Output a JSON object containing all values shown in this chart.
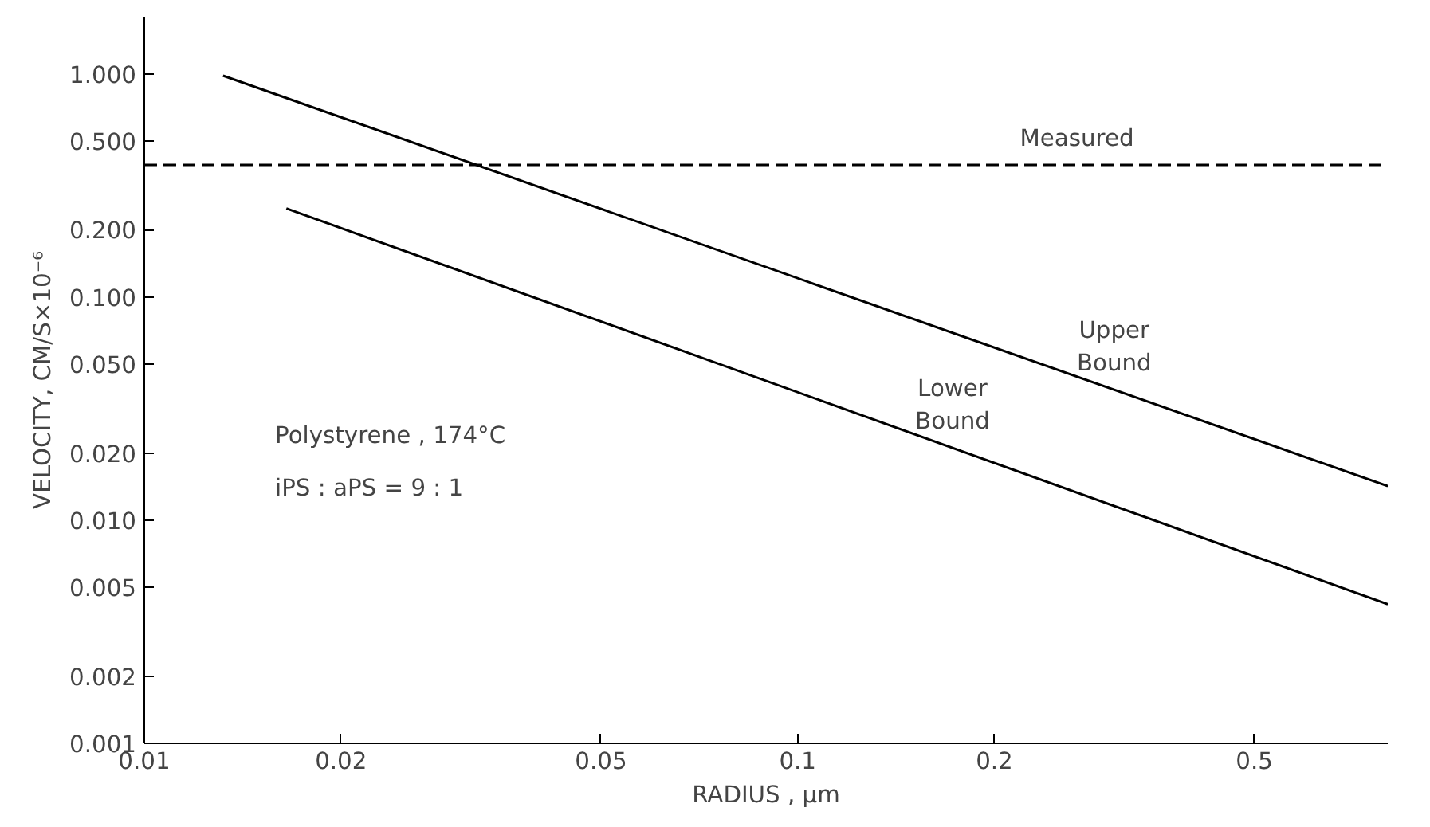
{
  "chart_data": {
    "type": "line",
    "xlabel": "RADIUS , μm",
    "ylabel": "VELOCITY, CM/S×10⁻⁶",
    "log": "xy",
    "grid": false,
    "marker": "none",
    "xlim": [
      0.01,
      0.8
    ],
    "ylim": [
      0.001,
      1.8
    ],
    "xticks": [
      0.01,
      0.02,
      0.05,
      0.1,
      0.2,
      0.5
    ],
    "yticks": [
      {
        "value": 0.001,
        "label": "0.001"
      },
      {
        "value": 0.002,
        "label": "0.002"
      },
      {
        "value": 0.005,
        "label": "0.005"
      },
      {
        "value": 0.01,
        "label": "0.010"
      },
      {
        "value": 0.02,
        "label": "0.020"
      },
      {
        "value": 0.05,
        "label": "0.050"
      },
      {
        "value": 0.1,
        "label": "0.100"
      },
      {
        "value": 0.2,
        "label": "0.200"
      },
      {
        "value": 0.5,
        "label": "0.500"
      },
      {
        "value": 1,
        "label": "1.000"
      }
    ],
    "series": [
      {
        "name": "Measured",
        "color": "#000000",
        "line_style": "dashed",
        "x": [
          0.01,
          0.8
        ],
        "values": [
          0.39,
          0.39
        ]
      },
      {
        "name": "Upper Bound",
        "color": "#000000",
        "line_style": "solid",
        "x": [
          0.0132,
          0.8
        ],
        "values": [
          0.98,
          0.0142
        ]
      },
      {
        "name": "Lower Bound",
        "color": "#000000",
        "line_style": "solid",
        "x": [
          0.0165,
          0.8
        ],
        "values": [
          0.249,
          0.0042
        ]
      }
    ],
    "annotations": [
      "Polystyrene , 174°C",
      "iPS : aPS = 9 : 1"
    ]
  }
}
